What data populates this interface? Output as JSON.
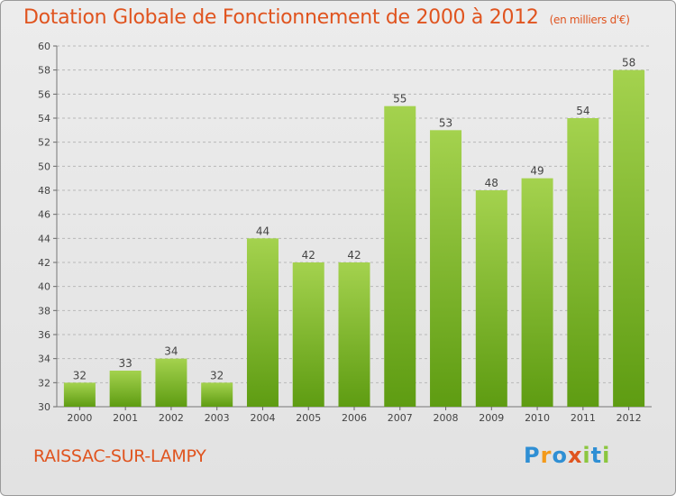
{
  "title": "Dotation Globale de Fonctionnement de 2000 à 2012",
  "subtitle": "(en milliers d'€)",
  "commune": "RAISSAC-SUR-LAMPY",
  "logo": {
    "text": "Proxiti",
    "letters": [
      "P",
      "r",
      "o",
      "x",
      "i",
      "t",
      "i"
    ],
    "colors": [
      "#2f8fd4",
      "#f39a1b",
      "#2f8fd4",
      "#e0541f",
      "#8cc63f",
      "#2f8fd4",
      "#8cc63f"
    ]
  },
  "colors": {
    "bar_top": "#a4d24e",
    "bar_bottom": "#5e9c12",
    "title": "#e0541f",
    "grid": "#b8b8b8"
  },
  "chart_data": {
    "type": "bar",
    "title": "Dotation Globale de Fonctionnement de 2000 à 2012",
    "subtitle": "(en milliers d'€)",
    "categories": [
      "2000",
      "2001",
      "2002",
      "2003",
      "2004",
      "2005",
      "2006",
      "2007",
      "2008",
      "2009",
      "2010",
      "2011",
      "2012"
    ],
    "values": [
      32,
      33,
      34,
      32,
      44,
      42,
      42,
      55,
      53,
      48,
      49,
      54,
      58
    ],
    "ylim": [
      30,
      60
    ],
    "yticks": [
      30,
      32,
      34,
      36,
      38,
      40,
      42,
      44,
      46,
      48,
      50,
      52,
      54,
      56,
      58,
      60
    ],
    "grid": true,
    "data_labels": true
  }
}
